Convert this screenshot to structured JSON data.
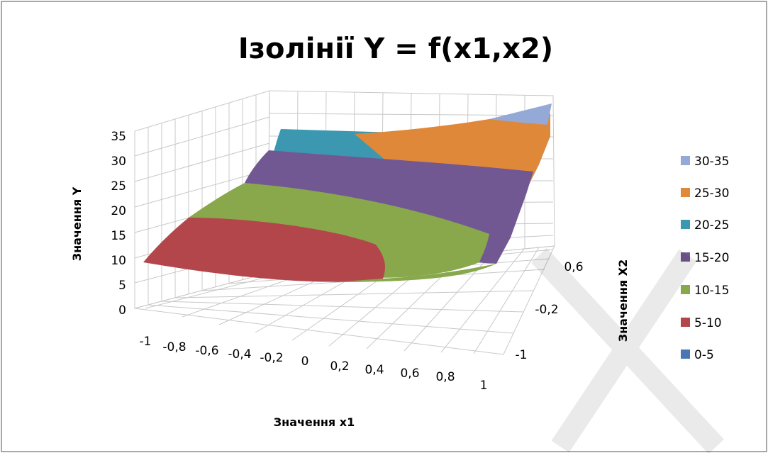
{
  "chart_data": {
    "type": "surface",
    "title": "Ізолінії  Y = f(x1,x2)",
    "xlabel": "Значення x1",
    "ylabel": "Значення X2",
    "zlabel": "Значення  Y",
    "x_ticks": [
      "-1",
      "-0,8",
      "-0,6",
      "-0,4",
      "-0,2",
      "0",
      "0,2",
      "0,4",
      "0,6",
      "0,8",
      "1"
    ],
    "y_ticks": [
      "-1",
      "-0,2",
      "0,6"
    ],
    "z_ticks": [
      "0",
      "5",
      "10",
      "15",
      "20",
      "25",
      "30",
      "35"
    ],
    "zlim": [
      0,
      35
    ],
    "grid": true,
    "legend_position": "right",
    "bands": [
      {
        "name": "30-35",
        "color": "#95a9d6"
      },
      {
        "name": "25-30",
        "color": "#e0883a"
      },
      {
        "name": "20-25",
        "color": "#3c98b0"
      },
      {
        "name": "15-20",
        "color": "#725893"
      },
      {
        "name": "10-15",
        "color": "#88a84b"
      },
      {
        "name": "5-10",
        "color": "#b3464a"
      },
      {
        "name": "0-5",
        "color": "#4b76b4"
      }
    ]
  }
}
